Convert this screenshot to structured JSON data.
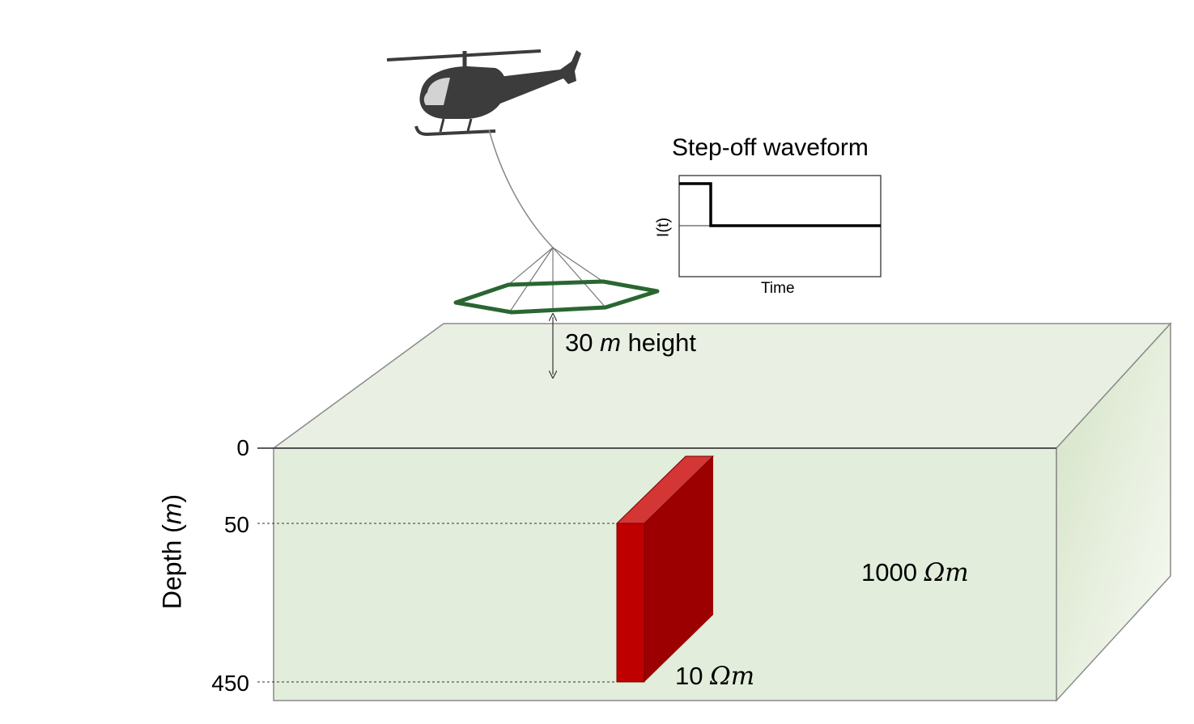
{
  "waveform": {
    "title": "Step-off waveform",
    "ylabel": "I(t)",
    "xlabel": "Time"
  },
  "flight_height": {
    "value": "30",
    "unit": "m",
    "suffix": "height"
  },
  "depth_axis": {
    "title_prefix": "Depth (",
    "title_unit": "m",
    "title_suffix": ")",
    "ticks": [
      "0",
      "50",
      "450"
    ]
  },
  "host": {
    "value": "1000",
    "unit": "Ωm"
  },
  "target": {
    "value": "10",
    "unit": "Ωm"
  },
  "colors": {
    "host_front": "#e2eddb",
    "host_top": "#e9f0e3",
    "target_front": "#bf0000",
    "target_side": "#9c0000",
    "target_top": "#d43535",
    "loop": "#2a6631",
    "helicopter": "#3c3c3c"
  }
}
